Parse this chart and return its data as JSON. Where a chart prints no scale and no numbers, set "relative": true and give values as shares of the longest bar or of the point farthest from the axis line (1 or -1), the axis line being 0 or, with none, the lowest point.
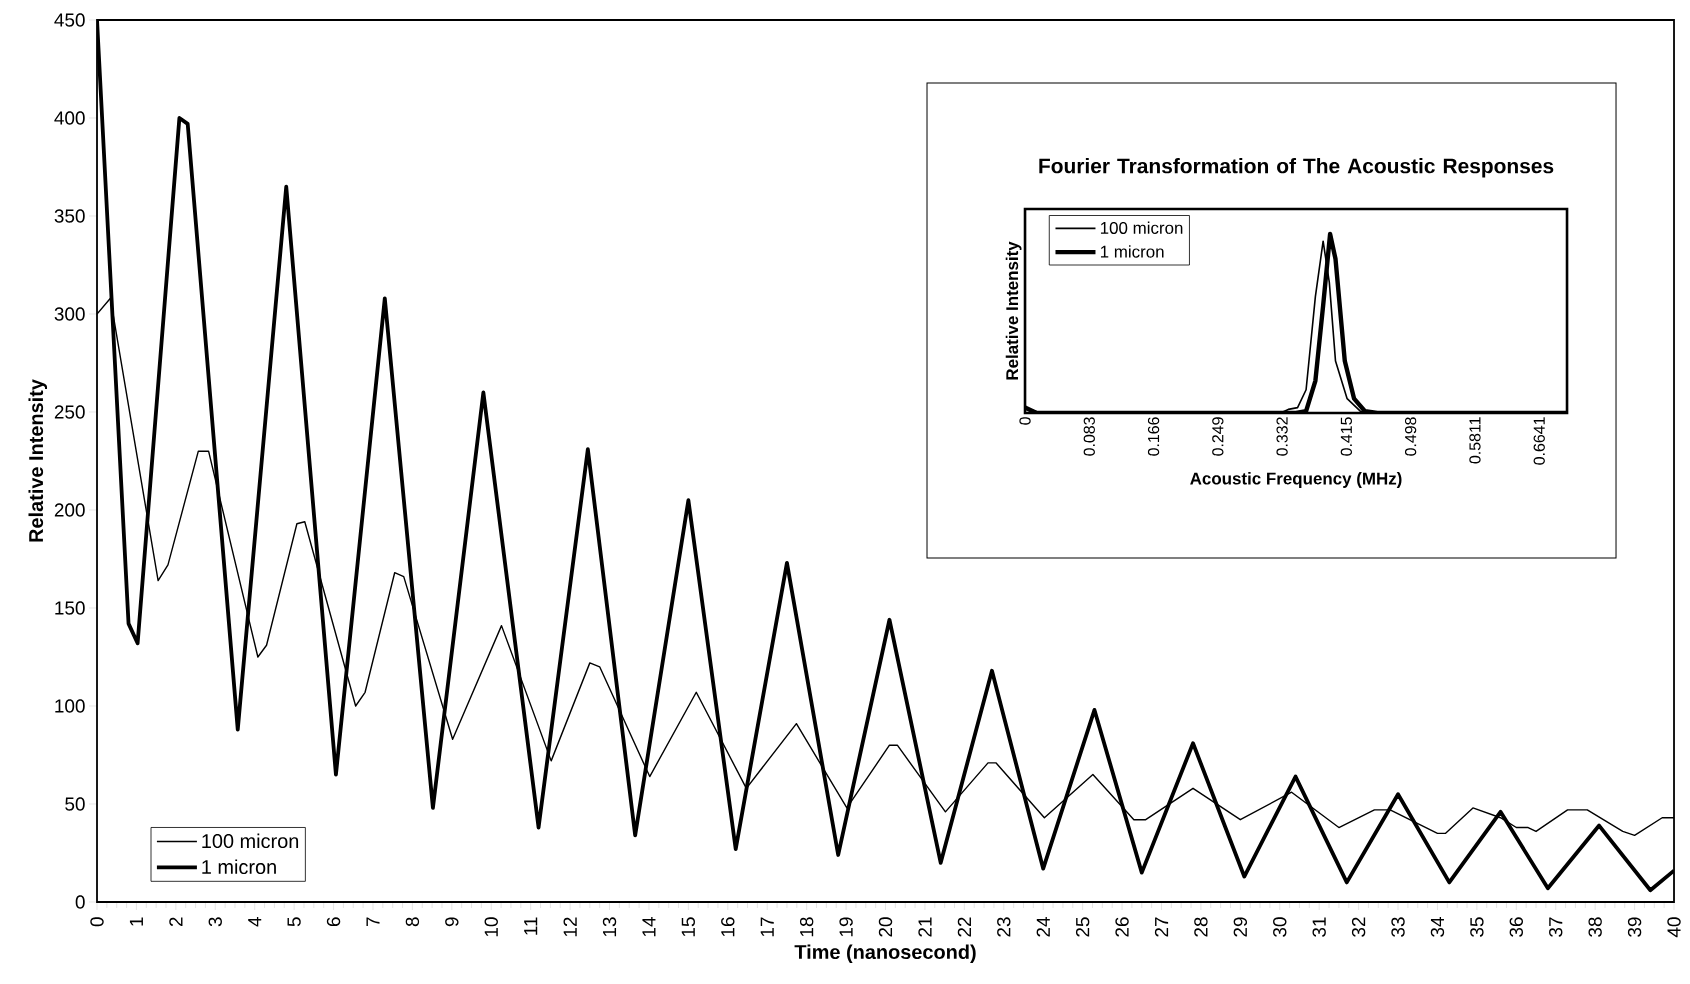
{
  "chart_data": [
    {
      "type": "line",
      "xlabel": "Time (nanosecond)",
      "ylabel": "Relative Intensity",
      "xlim": [
        0,
        40
      ],
      "xticks": [
        0,
        1,
        2,
        3,
        4,
        5,
        6,
        7,
        8,
        9,
        10,
        11,
        12,
        13,
        14,
        15,
        16,
        17,
        18,
        19,
        20,
        21,
        22,
        23,
        24,
        25,
        26,
        27,
        28,
        29,
        30,
        31,
        32,
        33,
        34,
        35,
        36,
        37,
        38,
        39,
        40
      ],
      "ylim": [
        0,
        450
      ],
      "yticks": [
        0,
        50,
        100,
        150,
        200,
        250,
        300,
        350,
        400,
        450
      ],
      "legend": "bottom left",
      "series": [
        {
          "name": "100 micron",
          "color": "#000000",
          "x": [
            0,
            0.34,
            1.55,
            1.8,
            2.57,
            2.83,
            4.08,
            4.3,
            5.07,
            5.27,
            6.56,
            6.8,
            7.55,
            7.78,
            9.02,
            10.26,
            11.52,
            12.5,
            12.75,
            14.02,
            15.2,
            16.47,
            17.74,
            19.02,
            20.1,
            20.3,
            21.52,
            22.6,
            22.8,
            24.03,
            25.26,
            26.3,
            26.6,
            27.8,
            29.0,
            30.3,
            31.5,
            32.4,
            32.8,
            34.0,
            34.2,
            34.9,
            35.6,
            36.0,
            36.3,
            36.5,
            37.3,
            37.8,
            38.7,
            39.0,
            39.7,
            40
          ],
          "values": [
            300,
            308,
            164,
            172,
            230,
            230,
            125,
            131,
            193,
            194,
            100,
            107,
            168,
            166,
            83,
            141,
            72,
            122,
            120,
            64,
            107,
            58,
            91,
            48,
            80,
            80,
            46,
            71,
            71,
            43,
            65,
            42,
            42,
            58,
            42,
            56,
            38,
            47,
            47,
            35,
            35,
            48,
            43,
            38,
            38,
            36,
            47,
            47,
            36,
            34,
            43,
            43
          ]
        },
        {
          "name": "1 micron",
          "color": "#000000",
          "x": [
            0,
            0.8,
            1.03,
            2.09,
            2.3,
            3.57,
            4.8,
            6.06,
            7.3,
            8.52,
            9.8,
            11.2,
            12.45,
            13.65,
            15.0,
            16.2,
            17.5,
            18.8,
            20.1,
            21.4,
            22.7,
            24.0,
            25.3,
            26.5,
            27.8,
            29.1,
            30.4,
            31.7,
            33.0,
            34.3,
            35.6,
            36.8,
            38.1,
            39.4,
            40
          ],
          "values": [
            450,
            142,
            132,
            400,
            397,
            88,
            365,
            65,
            308,
            48,
            260,
            38,
            231,
            34,
            205,
            27,
            173,
            24,
            144,
            20,
            118,
            17,
            98,
            15,
            81,
            13,
            64,
            10,
            55,
            10,
            46,
            7,
            39,
            6,
            16
          ]
        }
      ]
    },
    {
      "type": "line",
      "title": "Fourier Transformation of The Acoustic Responses",
      "xlabel": "Acoustic Frequency (MHz)",
      "ylabel": "Relative Intensity",
      "relative": true,
      "tick_labels": "x",
      "xlim": [
        0,
        0.7
      ],
      "xticks": [
        0,
        0.083,
        0.166,
        0.249,
        0.332,
        0.415,
        0.498,
        0.5811,
        0.6641
      ],
      "legend": "top left",
      "series": [
        {
          "name": "100 micron",
          "color": "#000000",
          "x": [
            0,
            0.02,
            0.33,
            0.34,
            0.352,
            0.363,
            0.375,
            0.385,
            0.393,
            0.401,
            0.416,
            0.433,
            0.45,
            0.7
          ],
          "values": [
            0.03,
            0,
            0,
            0.02,
            0.03,
            0.13,
            0.65,
            0.96,
            0.73,
            0.29,
            0.08,
            0.01,
            0,
            0
          ]
        },
        {
          "name": "1 micron",
          "color": "#000000",
          "x": [
            0,
            0.015,
            0.35,
            0.363,
            0.375,
            0.385,
            0.394,
            0.401,
            0.413,
            0.425,
            0.439,
            0.455,
            0.7
          ],
          "values": [
            0.03,
            0,
            0,
            0.01,
            0.18,
            0.6,
            1,
            0.86,
            0.29,
            0.08,
            0.01,
            0,
            0
          ]
        }
      ]
    }
  ]
}
